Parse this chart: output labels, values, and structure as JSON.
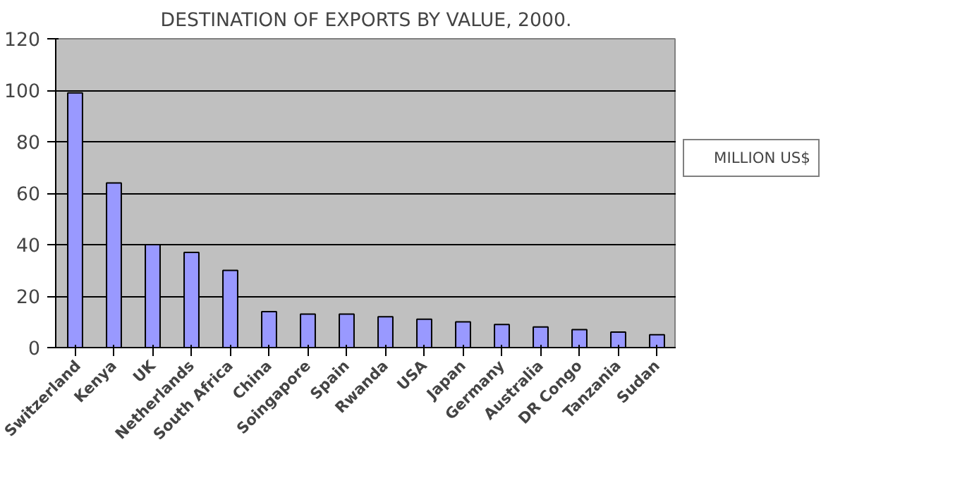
{
  "chart_data": {
    "type": "bar",
    "title": "DESTINATION OF EXPORTS BY VALUE, 2000.",
    "categories": [
      "Switzerland",
      "Kenya",
      "UK",
      "Netherlands",
      "South Africa",
      "China",
      "Soingapore",
      "Spain",
      "Rwanda",
      "USA",
      "Japan",
      "Germany",
      "Australia",
      "DR Congo",
      "Tanzania",
      "Sudan"
    ],
    "series": [
      {
        "name": "MILLION US$",
        "color": "#9999ff",
        "values": [
          99,
          64,
          40,
          37,
          30,
          14,
          13,
          13,
          12,
          11,
          10,
          9,
          8,
          7,
          6,
          5
        ]
      }
    ],
    "ylim": [
      0,
      120
    ],
    "yticks": [
      0,
      20,
      40,
      60,
      80,
      100,
      120
    ],
    "grid": "y",
    "legend": "right"
  }
}
